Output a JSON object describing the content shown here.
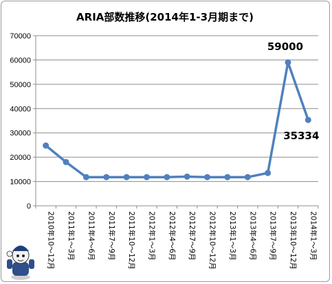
{
  "chart_data": {
    "type": "line",
    "title": "ARIA部数推移(2014年1-3月期まで)",
    "xlabel": "",
    "ylabel": "",
    "categories": [
      "2010年10～12月",
      "2011年1～3月",
      "2011年4～6月",
      "2011年7～9月",
      "2011年10～12月",
      "2012年1～3月",
      "2012年4～6月",
      "2012年7～9月",
      "2012年10～12月",
      "2013年1～3月",
      "2013年4～6月",
      "2013年7～9月",
      "2013年10～12月",
      "2014年1～3月"
    ],
    "series": [
      {
        "values": [
          24800,
          18000,
          11800,
          11800,
          11800,
          11800,
          11800,
          12000,
          11800,
          11800,
          11800,
          13500,
          59000,
          35334
        ]
      }
    ],
    "data_labels": [
      {
        "index": 12,
        "text": "59000"
      },
      {
        "index": 13,
        "text": "35334"
      }
    ],
    "ylim": [
      0,
      70000
    ],
    "yticks": [
      "0",
      "10000",
      "20000",
      "30000",
      "40000",
      "50000",
      "60000",
      "70000"
    ],
    "grid": true,
    "legend": "none",
    "colors": {
      "line": "#4f81bd",
      "grid": "#8c8c8c",
      "axis": "#8c8c8c"
    }
  },
  "decor": {
    "mascot_icon": "mascot-character-icon"
  }
}
